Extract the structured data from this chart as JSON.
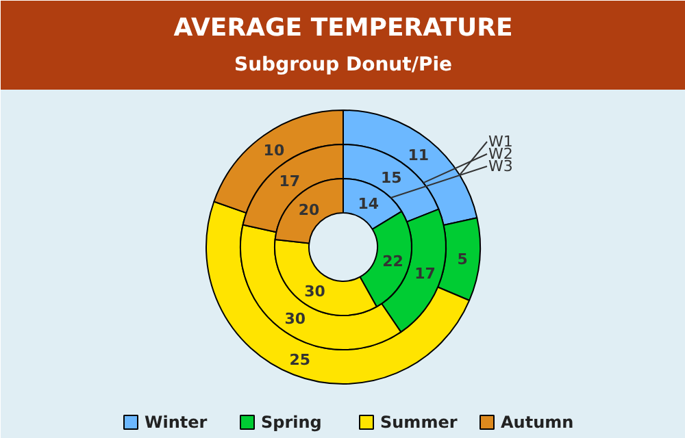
{
  "chart_data": {
    "type": "donut",
    "title": "AVERAGE TEMPERATURE",
    "subtitle": "Subgroup Donut/Pie",
    "categories": [
      "Winter",
      "Spring",
      "Summer",
      "Autumn"
    ],
    "colors": [
      "#6cb8ff",
      "#00cc33",
      "#ffe400",
      "#dd8a1e"
    ],
    "series": [
      {
        "name": "W1",
        "values": [
          11,
          5,
          25,
          10
        ]
      },
      {
        "name": "W2",
        "values": [
          15,
          17,
          30,
          17
        ]
      },
      {
        "name": "W3",
        "values": [
          14,
          22,
          30,
          20
        ]
      }
    ],
    "data_labels": true,
    "legend": "bottom"
  }
}
